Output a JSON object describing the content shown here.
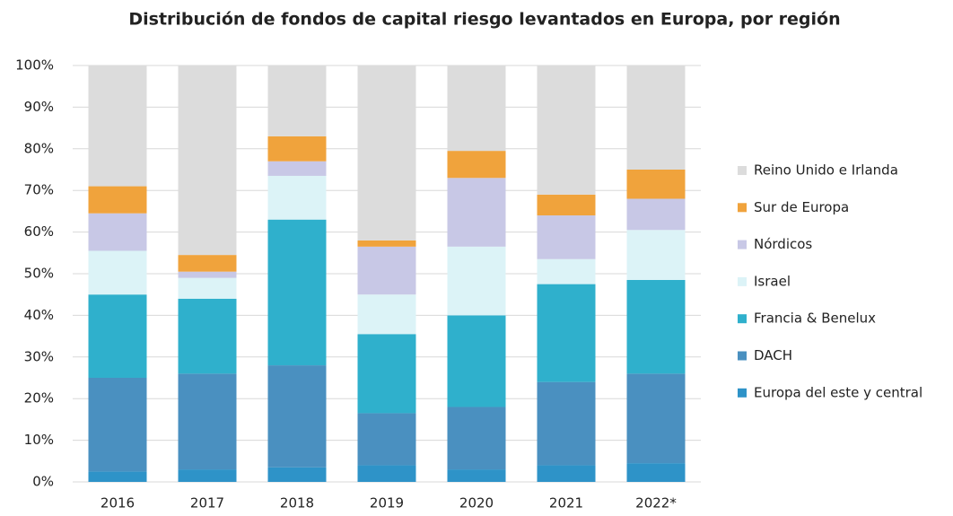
{
  "chart_data": {
    "type": "stacked_bar",
    "title": "Distribución de fondos de capital riesgo levantados en Europa, por región",
    "categories": [
      "2016",
      "2017",
      "2018",
      "2019",
      "2020",
      "2021",
      "2022*"
    ],
    "series": [
      {
        "name": "Europa del este y central",
        "color": "#2e93c8",
        "values": [
          2.5,
          3,
          3.5,
          4,
          3,
          4,
          4.5
        ]
      },
      {
        "name": "DACH",
        "color": "#4a90c0",
        "values": [
          22.5,
          23,
          24.5,
          12.5,
          15,
          20,
          21.5
        ]
      },
      {
        "name": "Francia & Benelux",
        "color": "#2fb0cc",
        "values": [
          20,
          18,
          35,
          19,
          22,
          23.5,
          22.5
        ]
      },
      {
        "name": "Israel",
        "color": "#dcf3f7",
        "values": [
          10.5,
          5,
          10.5,
          9.5,
          16.5,
          6,
          12
        ]
      },
      {
        "name": "Nórdicos",
        "color": "#c8c8e6",
        "values": [
          9,
          1.5,
          3.5,
          11.5,
          16.5,
          10.5,
          7.5
        ]
      },
      {
        "name": "Sur de Europa",
        "color": "#f0a33c",
        "values": [
          6.5,
          4,
          6,
          1.5,
          6.5,
          5,
          7
        ]
      },
      {
        "name": "Reino Unido e Irlanda",
        "color": "#dcdcdc",
        "values": [
          29,
          45.5,
          17,
          42,
          20.5,
          31,
          25
        ]
      }
    ],
    "ylim": [
      0,
      100
    ],
    "yticks": [
      {
        "value": 0,
        "label": "0%"
      },
      {
        "value": 10,
        "label": "10%"
      },
      {
        "value": 20,
        "label": "20%"
      },
      {
        "value": 30,
        "label": "30%"
      },
      {
        "value": 40,
        "label": "40%"
      },
      {
        "value": 50,
        "label": "50%"
      },
      {
        "value": 60,
        "label": "60%"
      },
      {
        "value": 70,
        "label": "70%"
      },
      {
        "value": 80,
        "label": "80%"
      },
      {
        "value": 90,
        "label": "90%"
      },
      {
        "value": 100,
        "label": "100%"
      }
    ],
    "grid": true
  }
}
